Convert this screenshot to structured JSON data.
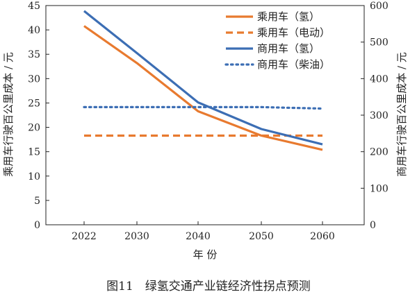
{
  "caption": "图11　绿氢交通产业链经济性拐点预测",
  "chart_data": {
    "type": "line",
    "categories": [
      "2022",
      "2030",
      "2040",
      "2050",
      "2060"
    ],
    "xlabel": "年  份",
    "ylabel_left": "乘用车行驶百公里成本 / 元",
    "ylabel_right": "商用车行驶百公里成本 / 元",
    "ylim_left": [
      0,
      45
    ],
    "ylim_right": [
      0,
      600
    ],
    "yticks_left": [
      0,
      5,
      10,
      15,
      20,
      25,
      30,
      35,
      40,
      45
    ],
    "yticks_right": [
      0,
      100,
      200,
      300,
      400,
      500,
      600
    ],
    "grid": false,
    "legend_position": "top-right",
    "series": [
      {
        "name": "乘用车（氢）",
        "axis": "left",
        "color": "#E87A2F",
        "style": "solid",
        "values": [
          40.8,
          33.2,
          23.3,
          18.3,
          15.4
        ]
      },
      {
        "name": "乘用车（电动）",
        "axis": "left",
        "color": "#E87A2F",
        "style": "dashed",
        "values": [
          18.3,
          18.3,
          18.3,
          18.3,
          18.3
        ]
      },
      {
        "name": "商用车（氢）",
        "axis": "right",
        "color": "#3C6EB4",
        "style": "solid",
        "values": [
          585,
          470,
          335,
          262,
          220
        ]
      },
      {
        "name": "商用车（柴油）",
        "axis": "right",
        "color": "#3C6EB4",
        "style": "dotted",
        "values": [
          322,
          322,
          322,
          322,
          318
        ]
      }
    ]
  }
}
